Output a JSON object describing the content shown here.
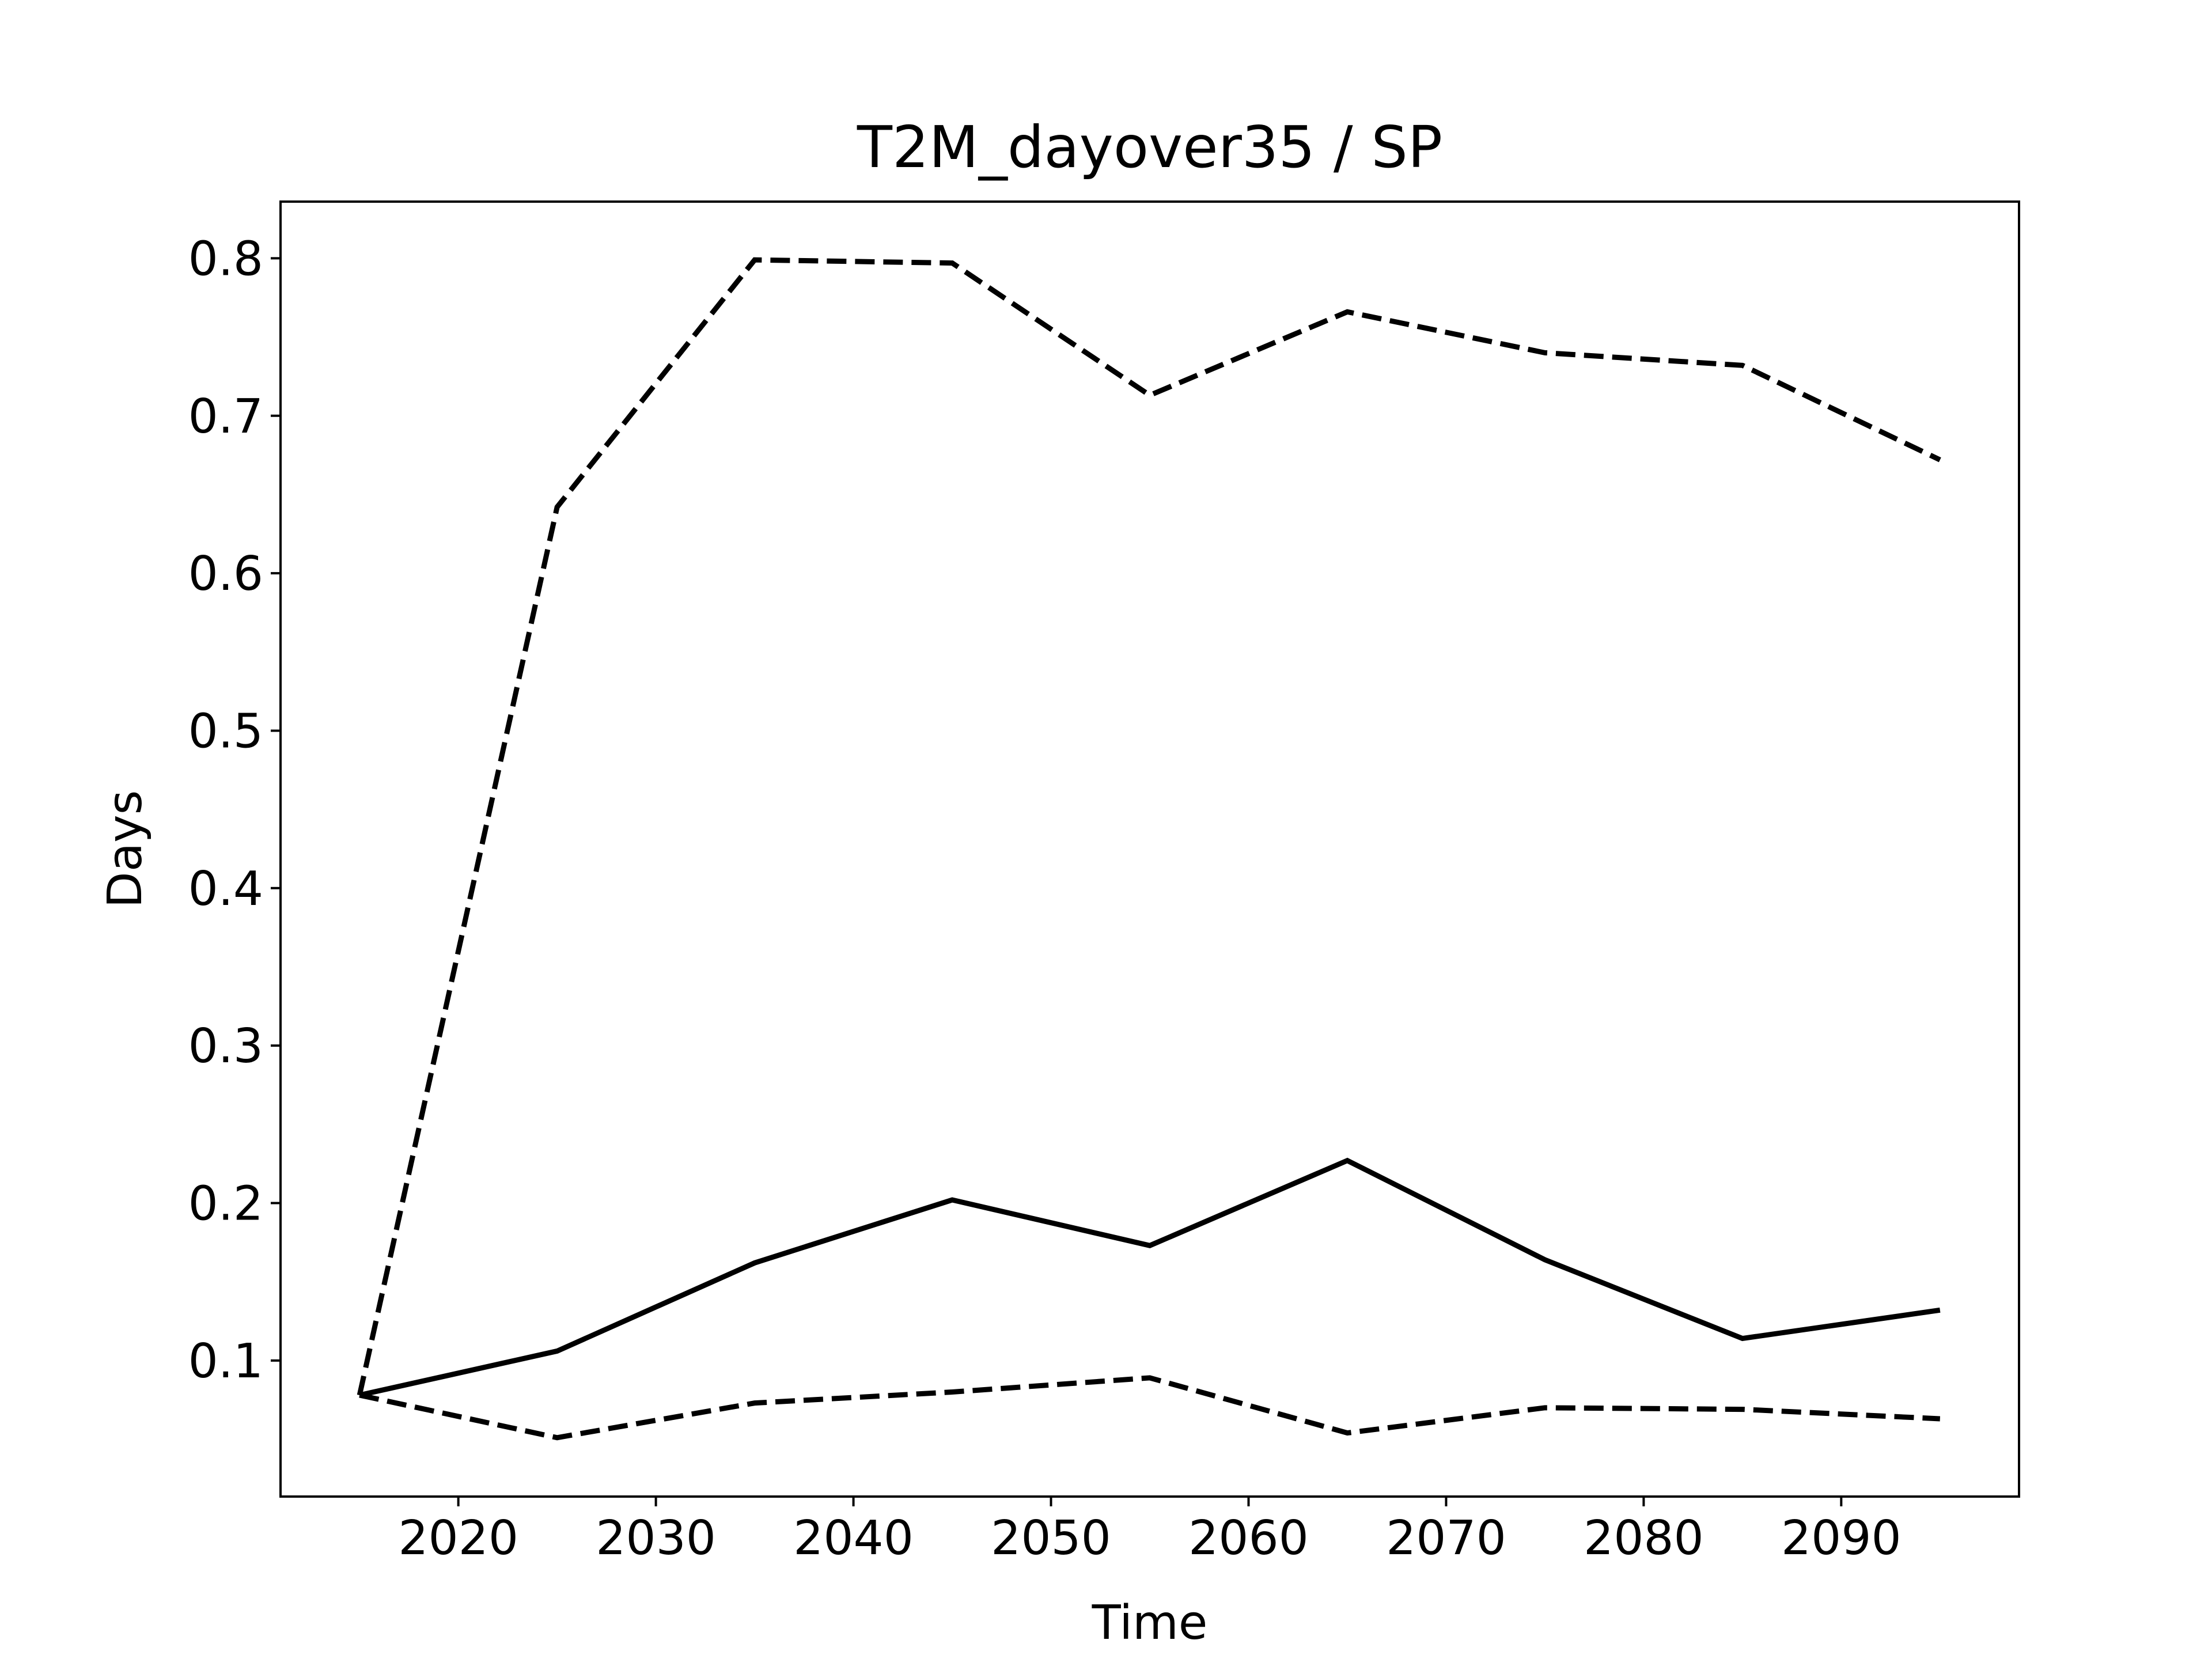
{
  "chart_data": {
    "type": "line",
    "title": "T2M_dayover35 / SP",
    "x_label": "Time",
    "y_label": "Days",
    "x": [
      2015,
      2025,
      2035,
      2045,
      2055,
      2065,
      2075,
      2085,
      2095
    ],
    "series": [
      {
        "color": "#000000",
        "linestyle": "solid",
        "values": [
          0.078,
          0.106,
          0.162,
          0.202,
          0.173,
          0.227,
          0.164,
          0.114,
          0.132
        ]
      },
      {
        "color": "#000000",
        "linestyle": "dashed",
        "values": [
          0.078,
          0.642,
          0.799,
          0.797,
          0.713,
          0.766,
          0.74,
          0.732,
          0.672
        ]
      },
      {
        "color": "#000000",
        "linestyle": "dashed",
        "values": [
          0.078,
          0.051,
          0.073,
          0.08,
          0.089,
          0.054,
          0.07,
          0.069,
          0.063
        ]
      }
    ],
    "xlim": [
      2011,
      2099
    ],
    "ylim": [
      0.0136,
      0.836
    ],
    "xticks": [
      2020,
      2030,
      2040,
      2050,
      2060,
      2070,
      2080,
      2090
    ],
    "yticks": [
      0.1,
      0.2,
      0.3,
      0.4,
      0.5,
      0.6,
      0.7,
      0.8
    ],
    "grid": false
  }
}
